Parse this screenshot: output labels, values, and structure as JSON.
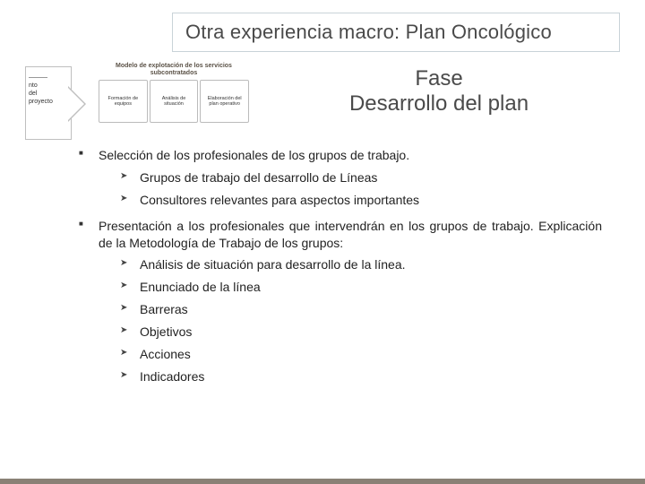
{
  "title": "Otra experiencia macro: Plan Oncológico",
  "arrow_lines": [
    "———",
    "nto",
    "del",
    "proyecto"
  ],
  "mini": {
    "heading": "Modelo de explotación de los servicios subcontratados",
    "boxes": [
      "Formación de equipos",
      "Análisis de situación",
      "Elaboración del plan operativo"
    ]
  },
  "phase": {
    "line1": "Fase",
    "line2": "Desarrollo del plan"
  },
  "b1": {
    "text": "Selección de los profesionales de los grupos de trabajo.",
    "subs": [
      "Grupos de trabajo del desarrollo de Líneas",
      "Consultores relevantes para aspectos importantes"
    ]
  },
  "b2": {
    "text": "Presentación a los profesionales que intervendrán en los grupos de trabajo. Explicación de la Metodología de Trabajo de los grupos:",
    "subs": [
      "Análisis de situación para desarrollo de la línea.",
      "Enunciado de la línea",
      "Barreras",
      "Objetivos",
      "Acciones",
      "Indicadores"
    ]
  },
  "colors": {
    "footer_bar": "#8a8176",
    "title_border": "#c9d3d8"
  }
}
